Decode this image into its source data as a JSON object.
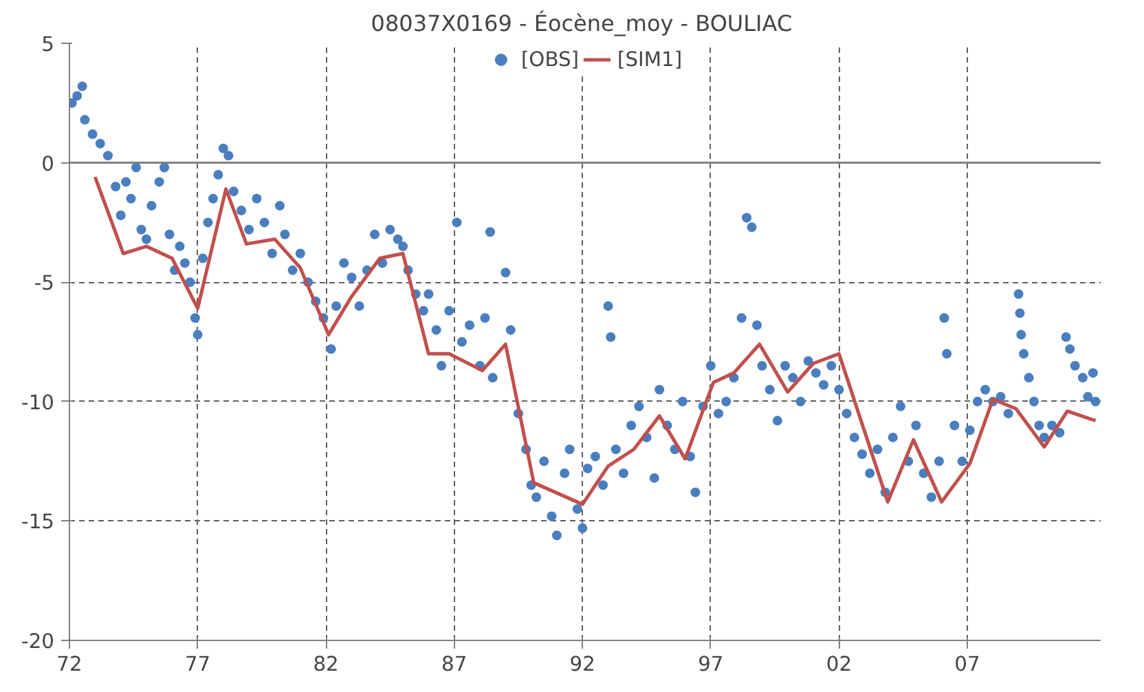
{
  "chart_data": {
    "type": "line",
    "title": "08037X0169 - Éocène_moy  - BOULIAC",
    "xlim": [
      1972,
      2012.2
    ],
    "xticks": [
      {
        "value": 1972,
        "label": "72"
      },
      {
        "value": 1977,
        "label": "77"
      },
      {
        "value": 1982,
        "label": "82"
      },
      {
        "value": 1987,
        "label": "87"
      },
      {
        "value": 1992,
        "label": "92"
      },
      {
        "value": 1997,
        "label": "97"
      },
      {
        "value": 2002,
        "label": "02"
      },
      {
        "value": 2007,
        "label": "07"
      }
    ],
    "ylim": [
      -20,
      5
    ],
    "yticks": [
      -20,
      -15,
      -10,
      -5,
      0,
      5
    ],
    "grid": true,
    "legend": "top",
    "ref_lines": [
      {
        "axis": "y",
        "value": 0,
        "color": "#808080"
      }
    ],
    "series": [
      {
        "name": "[OBS]",
        "type": "scatter",
        "marker": "circle",
        "color": "#4a7ebf",
        "x": [
          1972.1,
          1972.3,
          1972.5,
          1972.6,
          1972.9,
          1973.2,
          1973.5,
          1973.8,
          1974.0,
          1974.2,
          1974.4,
          1974.6,
          1974.8,
          1975.0,
          1975.2,
          1975.5,
          1975.7,
          1975.9,
          1976.1,
          1976.3,
          1976.5,
          1976.7,
          1976.9,
          1977.0,
          1977.2,
          1977.4,
          1977.6,
          1977.8,
          1978.0,
          1978.2,
          1978.4,
          1978.7,
          1979.0,
          1979.3,
          1979.6,
          1979.9,
          1980.2,
          1980.4,
          1980.7,
          1981.0,
          1981.3,
          1981.6,
          1981.9,
          1982.2,
          1982.4,
          1982.7,
          1983.0,
          1983.3,
          1983.6,
          1983.9,
          1984.2,
          1984.5,
          1984.8,
          1985.0,
          1985.2,
          1985.5,
          1985.8,
          1986.0,
          1986.3,
          1986.5,
          1986.8,
          1987.1,
          1987.3,
          1987.6,
          1988.0,
          1988.2,
          1988.4,
          1988.5,
          1989.0,
          1989.2,
          1989.5,
          1989.8,
          1990.0,
          1990.2,
          1990.5,
          1990.8,
          1991.0,
          1991.3,
          1991.5,
          1991.8,
          1992.0,
          1992.2,
          1992.5,
          1992.8,
          1993.0,
          1993.1,
          1993.3,
          1993.6,
          1993.9,
          1994.2,
          1994.5,
          1994.8,
          1995.0,
          1995.3,
          1995.6,
          1995.9,
          1996.2,
          1996.4,
          1996.7,
          1997.0,
          1997.3,
          1997.6,
          1997.9,
          1998.2,
          1998.4,
          1998.6,
          1998.8,
          1999.0,
          1999.3,
          1999.6,
          1999.9,
          2000.2,
          2000.5,
          2000.8,
          2001.1,
          2001.4,
          2001.7,
          2002.0,
          2002.3,
          2002.6,
          2002.9,
          2003.2,
          2003.5,
          2003.8,
          2004.1,
          2004.4,
          2004.7,
          2005.0,
          2005.3,
          2005.6,
          2005.9,
          2006.1,
          2006.2,
          2006.5,
          2006.8,
          2007.1,
          2007.4,
          2007.7,
          2008.0,
          2008.3,
          2008.6,
          2009.0,
          2009.05,
          2009.1,
          2009.2,
          2009.4,
          2009.6,
          2009.8,
          2010.0,
          2010.3,
          2010.6,
          2010.85,
          2011.0,
          2011.2,
          2011.5,
          2011.7,
          2011.9,
          2012.0
        ],
        "values": [
          2.5,
          2.8,
          3.2,
          1.8,
          1.2,
          0.8,
          0.3,
          -1.0,
          -2.2,
          -0.8,
          -1.5,
          -0.2,
          -2.8,
          -3.2,
          -1.8,
          -0.8,
          -0.2,
          -3.0,
          -4.5,
          -3.5,
          -4.2,
          -5.0,
          -6.5,
          -7.2,
          -4.0,
          -2.5,
          -1.5,
          -0.5,
          0.6,
          0.3,
          -1.2,
          -2.0,
          -2.8,
          -1.5,
          -2.5,
          -3.8,
          -1.8,
          -3.0,
          -4.5,
          -3.8,
          -5.0,
          -5.8,
          -6.5,
          -7.8,
          -6.0,
          -4.2,
          -4.8,
          -6.0,
          -4.5,
          -3.0,
          -4.2,
          -2.8,
          -3.2,
          -3.5,
          -4.5,
          -5.5,
          -6.2,
          -5.5,
          -7.0,
          -8.5,
          -6.2,
          -2.5,
          -7.5,
          -6.8,
          -8.5,
          -6.5,
          -2.9,
          -9.0,
          -4.6,
          -7.0,
          -10.5,
          -12.0,
          -13.5,
          -14.0,
          -12.5,
          -14.8,
          -15.6,
          -13.0,
          -12.0,
          -14.5,
          -15.3,
          -12.8,
          -12.3,
          -13.5,
          -6.0,
          -7.3,
          -12.0,
          -13.0,
          -11.0,
          -10.2,
          -11.5,
          -13.2,
          -9.5,
          -11.0,
          -12.0,
          -10.0,
          -12.3,
          -13.8,
          -10.2,
          -8.5,
          -10.5,
          -10.0,
          -9.0,
          -6.5,
          -2.3,
          -2.7,
          -6.8,
          -8.5,
          -9.5,
          -10.8,
          -8.5,
          -9.0,
          -10.0,
          -8.3,
          -8.8,
          -9.3,
          -8.5,
          -9.5,
          -10.5,
          -11.5,
          -12.2,
          -13.0,
          -12.0,
          -13.8,
          -11.5,
          -10.2,
          -12.5,
          -11.0,
          -13.0,
          -14.0,
          -12.5,
          -6.5,
          -8.0,
          -11.0,
          -12.5,
          -11.2,
          -10.0,
          -9.5,
          -10.0,
          -9.8,
          -10.5,
          -5.5,
          -6.3,
          -7.2,
          -8.0,
          -9.0,
          -10.0,
          -11.0,
          -11.5,
          -11.0,
          -11.3,
          -7.3,
          -7.8,
          -8.5,
          -9.0,
          -9.8,
          -8.8,
          -10.0
        ]
      },
      {
        "name": "[SIM1]",
        "marker": "none",
        "line_style": "solid",
        "color": "#c0504d",
        "x": [
          1973.0,
          1974.1,
          1975.0,
          1976.0,
          1977.0,
          1978.1,
          1978.9,
          1980.0,
          1981.0,
          1982.1,
          1983.0,
          1984.1,
          1985.0,
          1986.0,
          1986.8,
          1988.1,
          1989.0,
          1990.1,
          1992.0,
          1993.0,
          1994.0,
          1995.0,
          1996.0,
          1997.1,
          1997.9,
          1998.9,
          2000.0,
          2001.0,
          2002.0,
          2003.9,
          2004.9,
          2006.0,
          2007.1,
          2008.0,
          2008.9,
          2010.0,
          2010.9,
          2012.0
        ],
        "values": [
          -0.6,
          -3.8,
          -3.5,
          -4.0,
          -6.1,
          -1.1,
          -3.4,
          -3.2,
          -4.4,
          -7.2,
          -5.6,
          -4.0,
          -3.8,
          -8.0,
          -8.0,
          -8.7,
          -7.6,
          -13.4,
          -14.3,
          -12.7,
          -12.0,
          -10.6,
          -12.4,
          -9.2,
          -8.8,
          -7.6,
          -9.6,
          -8.4,
          -8.0,
          -14.2,
          -11.6,
          -14.2,
          -12.6,
          -9.9,
          -10.3,
          -11.9,
          -10.4,
          -10.8
        ]
      }
    ]
  }
}
